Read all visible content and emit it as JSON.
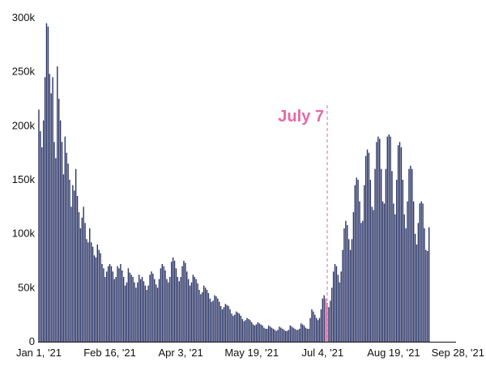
{
  "chart_data": {
    "type": "bar",
    "title": "",
    "xlabel": "",
    "ylabel": "",
    "ylim": [
      0,
      300000
    ],
    "x_range": [
      "2021-01-01",
      "2021-09-28"
    ],
    "y_ticks": [
      {
        "value": 0,
        "label": "0"
      },
      {
        "value": 50000,
        "label": "50k"
      },
      {
        "value": 100000,
        "label": "100k"
      },
      {
        "value": 150000,
        "label": "150k"
      },
      {
        "value": 200000,
        "label": "200k"
      },
      {
        "value": 250000,
        "label": "250k"
      },
      {
        "value": 300000,
        "label": "300k"
      }
    ],
    "x_ticks": [
      {
        "date": "2021-01-01",
        "label": "Jan 1, '21"
      },
      {
        "date": "2021-02-16",
        "label": "Feb 16, '21"
      },
      {
        "date": "2021-04-03",
        "label": "Apr 3, '21"
      },
      {
        "date": "2021-05-19",
        "label": "May 19, '21"
      },
      {
        "date": "2021-07-04",
        "label": "Jul 4, '21"
      },
      {
        "date": "2021-08-19",
        "label": "Aug 19, '21"
      },
      {
        "date": "2021-09-28",
        "label": "Sep 28, '21"
      }
    ],
    "bar_color": "#2a3466",
    "highlight_color": "#e0458e",
    "annotation": {
      "date": "2021-07-07",
      "label": "July 7",
      "color": "#e56aa6"
    },
    "highlight_dates": [
      "2021-07-06",
      "2021-07-07"
    ],
    "series": [
      {
        "start_date": "2021-01-01",
        "values": [
          215000,
          195000,
          180000,
          205000,
          245000,
          295000,
          292000,
          248000,
          230000,
          245000,
          185000,
          170000,
          255000,
          225000,
          205000,
          185000,
          155000,
          190000,
          175000,
          165000,
          150000,
          125000,
          145000,
          140000,
          160000,
          135000,
          120000,
          105000,
          115000,
          125000,
          110000,
          95000,
          92000,
          105000,
          92000,
          88000,
          80000,
          78000,
          90000,
          85000,
          82000,
          72000,
          68000,
          60000,
          65000,
          70000,
          72000,
          70000,
          65000,
          58000,
          60000,
          70000,
          68000,
          72000,
          66000,
          60000,
          52000,
          55000,
          68000,
          64000,
          62000,
          60000,
          55000,
          50000,
          55000,
          62000,
          58000,
          60000,
          56000,
          52000,
          48000,
          52000,
          62000,
          65000,
          63000,
          58000,
          53000,
          50000,
          58000,
          68000,
          72000,
          70000,
          66000,
          58000,
          55000,
          60000,
          74000,
          78000,
          75000,
          68000,
          60000,
          56000,
          60000,
          70000,
          75000,
          73000,
          65000,
          58000,
          52000,
          55000,
          62000,
          60000,
          58000,
          54000,
          48000,
          44000,
          46000,
          52000,
          50000,
          48000,
          45000,
          40000,
          37000,
          38000,
          43000,
          42000,
          40000,
          37000,
          33000,
          30000,
          32000,
          35000,
          34000,
          33000,
          30000,
          26000,
          24000,
          25000,
          28000,
          27000,
          26000,
          24000,
          21000,
          19000,
          20000,
          22000,
          21000,
          20000,
          18000,
          16000,
          15000,
          16000,
          18000,
          17000,
          16000,
          15000,
          13000,
          12000,
          12000,
          15000,
          14000,
          13000,
          12000,
          11000,
          10000,
          11000,
          14000,
          13000,
          12000,
          11000,
          10000,
          10000,
          11000,
          15000,
          14000,
          13000,
          12000,
          11000,
          11000,
          12000,
          17000,
          16000,
          15000,
          13000,
          12000,
          12000,
          22000,
          30000,
          28000,
          25000,
          22000,
          20000,
          22000,
          30000,
          40000,
          43000,
          40000,
          36000,
          32000,
          38000,
          50000,
          65000,
          72000,
          70000,
          62000,
          55000,
          65000,
          85000,
          105000,
          112000,
          108000,
          95000,
          85000,
          95000,
          120000,
          145000,
          152000,
          150000,
          130000,
          110000,
          112000,
          145000,
          172000,
          178000,
          175000,
          150000,
          125000,
          122000,
          160000,
          185000,
          190000,
          188000,
          160000,
          130000,
          128000,
          160000,
          190000,
          192000,
          190000,
          158000,
          128000,
          118000,
          150000,
          182000,
          185000,
          180000,
          150000,
          118000,
          105000,
          130000,
          160000,
          163000,
          160000,
          130000,
          100000,
          90000,
          110000,
          128000,
          130000,
          128000,
          105000,
          85000,
          84000,
          106000
        ]
      }
    ]
  }
}
